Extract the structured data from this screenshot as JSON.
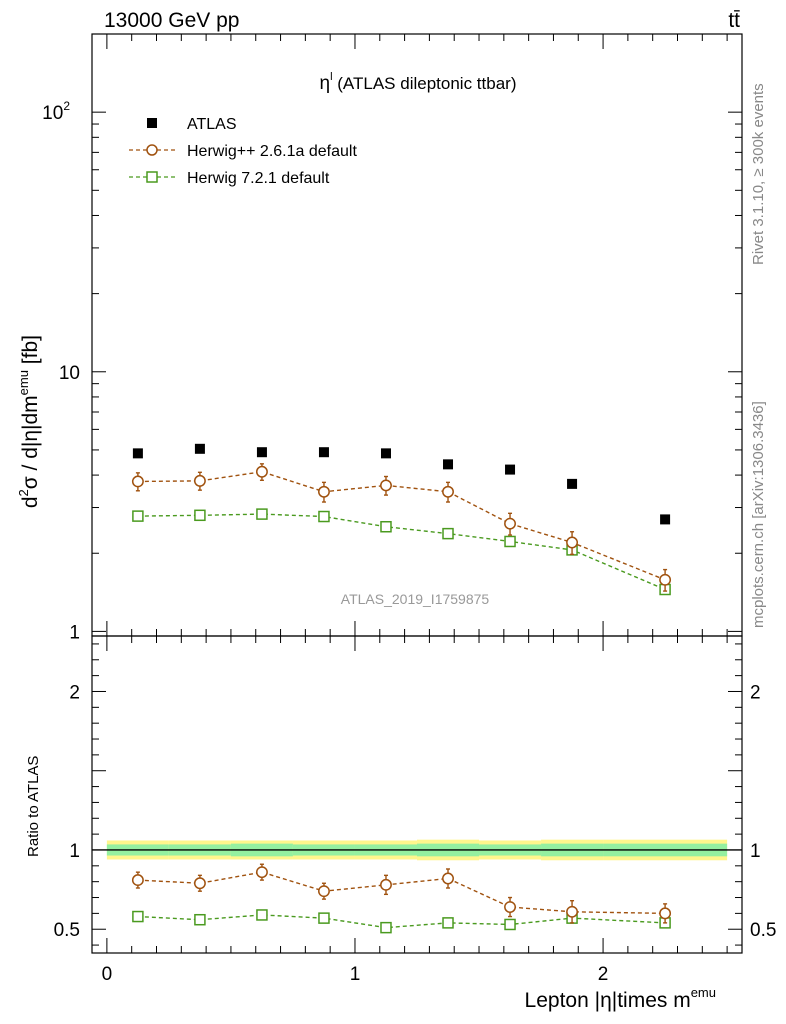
{
  "header": {
    "left": "13000 GeV pp",
    "right": "tt̄"
  },
  "side_labels": {
    "rivet": "Rivet 3.1.10, ≥ 300k events",
    "mcplots": "mcplots.cern.ch [arXiv:1306.3436]"
  },
  "colors": {
    "atlas": "#000000",
    "herwigpp": "#a0520f",
    "herwig7": "#4a9a1f",
    "band_outer": "#fff68c",
    "band_inner": "#94f0a0"
  },
  "chart_data": [
    {
      "type": "scatter",
      "title": "η^l (ATLAS dileptonic ttbar)",
      "title_main": "η",
      "title_sup": "l",
      "title_rest": " (ATLAS dileptonic ttbar)",
      "ylabel": "d²σ / d|η|dm^emu [fb]",
      "ylabel_parts": [
        "d",
        "2",
        "σ / d|η|dm",
        "emu",
        " [fb]"
      ],
      "watermark": "ATLAS_2019_I1759875",
      "yscale": "log",
      "ylim": [
        0.96,
        200
      ],
      "xlim": [
        -0.06,
        2.56
      ],
      "xbins": [
        0,
        0.25,
        0.5,
        0.75,
        1.0,
        1.25,
        1.5,
        1.75,
        2.0,
        2.5
      ],
      "x": [
        0.125,
        0.375,
        0.625,
        0.875,
        1.125,
        1.375,
        1.625,
        1.875,
        2.25
      ],
      "ytick_labels": [
        {
          "value": 1,
          "label": "1"
        },
        {
          "value": 10,
          "label": "10"
        },
        {
          "value": 100,
          "label": "10",
          "sup": "2"
        }
      ],
      "legend_position": "top-left",
      "series": [
        {
          "name": "ATLAS",
          "marker": "filled-square",
          "values": [
            4.85,
            5.05,
            4.9,
            4.9,
            4.85,
            4.4,
            4.2,
            3.7,
            2.7
          ]
        },
        {
          "name": "Herwig++ 2.6.1a default",
          "marker": "open-circle",
          "line": "dashed",
          "values": [
            3.78,
            3.8,
            4.12,
            3.45,
            3.65,
            3.45,
            2.6,
            2.2,
            1.58
          ],
          "errors": [
            0.3,
            0.3,
            0.3,
            0.3,
            0.3,
            0.3,
            0.25,
            0.22,
            0.15
          ]
        },
        {
          "name": "Herwig 7.2.1 default",
          "marker": "open-square",
          "line": "dashed",
          "values": [
            2.78,
            2.8,
            2.83,
            2.77,
            2.53,
            2.38,
            2.22,
            2.06,
            1.45
          ]
        }
      ]
    },
    {
      "type": "scatter",
      "ylabel": "Ratio to ATLAS",
      "xlabel": "Lepton |η|times m^emu",
      "xlabel_main": "Lepton |η|times m",
      "xlabel_sup": "emu",
      "ylim": [
        0.35,
        2.35
      ],
      "xlim": [
        -0.06,
        2.56
      ],
      "yticks": [
        0.5,
        1,
        2
      ],
      "ytick_labels": [
        "0.5",
        "1",
        "2"
      ],
      "xticks": [
        0,
        1,
        2
      ],
      "xtick_labels": [
        "0",
        "1",
        "2"
      ],
      "reference_line": 1,
      "band_outer": [
        0.06,
        0.06,
        0.06,
        0.06,
        0.06,
        0.065,
        0.06,
        0.065,
        0.065
      ],
      "band_inner": [
        0.035,
        0.035,
        0.04,
        0.035,
        0.035,
        0.04,
        0.035,
        0.04,
        0.04
      ],
      "series": [
        {
          "name": "Herwig++ 2.6.1a default",
          "values": [
            0.81,
            0.79,
            0.86,
            0.74,
            0.78,
            0.82,
            0.64,
            0.61,
            0.6
          ],
          "errors": [
            0.05,
            0.05,
            0.05,
            0.05,
            0.06,
            0.06,
            0.06,
            0.07,
            0.06
          ]
        },
        {
          "name": "Herwig 7.2.1 default",
          "values": [
            0.58,
            0.56,
            0.59,
            0.57,
            0.51,
            0.54,
            0.53,
            0.57,
            0.54
          ]
        }
      ]
    }
  ]
}
